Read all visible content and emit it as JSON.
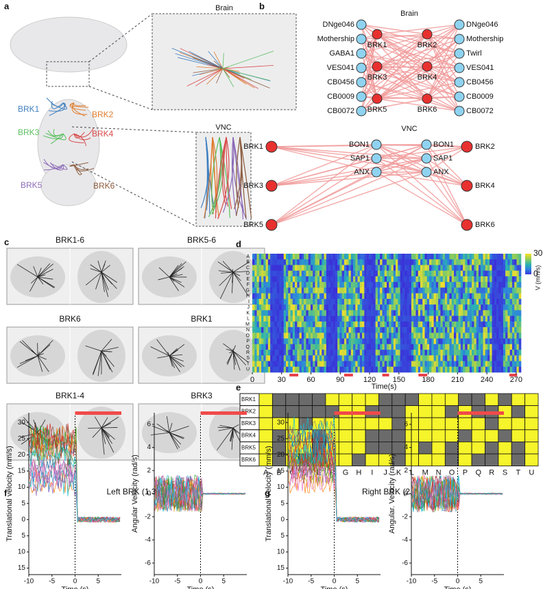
{
  "panel_labels": [
    "a",
    "b",
    "c",
    "d",
    "e",
    "f",
    "g"
  ],
  "a": {
    "brain_label": "Brain",
    "vnc_label": "VNC",
    "neurons": [
      {
        "name": "BRK1",
        "color": "#3f7fbf"
      },
      {
        "name": "BRK2",
        "color": "#e07b2b"
      },
      {
        "name": "BRK3",
        "color": "#5bbf5f"
      },
      {
        "name": "BRK4",
        "color": "#d94a4a"
      },
      {
        "name": "BRK5",
        "color": "#8c6bb8"
      },
      {
        "name": "BRK6",
        "color": "#8b5a3c"
      }
    ]
  },
  "b": {
    "brain_title": "Brain",
    "brain_left": [
      "DNge046",
      "Mothership",
      "GABA1",
      "VES041",
      "CB0456",
      "CB0009",
      "CB0072"
    ],
    "brain_right": [
      "DNge046",
      "Mothership",
      "Twirl",
      "VES041",
      "CB0456",
      "CB0009",
      "CB0072"
    ],
    "brain_brk": [
      "BRK1",
      "BRK2",
      "BRK3",
      "BRK4",
      "BRK5",
      "BRK6"
    ],
    "vnc_title": "VNC",
    "vnc_brk": [
      "BRK1",
      "BRK2",
      "BRK3",
      "BRK4",
      "BRK5",
      "BRK6"
    ],
    "vnc_left": [
      "BON1",
      "SAP1",
      "ANX"
    ],
    "vnc_right": [
      "BON1",
      "SAP1",
      "ANX"
    ]
  },
  "c": {
    "images": [
      "BRK1-6",
      "BRK5-6",
      "BRK6",
      "BRK1",
      "BRK1-4",
      "BRK3"
    ]
  },
  "d": {
    "rows": [
      "A",
      "B",
      "C",
      "D",
      "E",
      "F",
      "G",
      "H",
      "I",
      "J",
      "K",
      "L",
      "M",
      "N",
      "O",
      "P",
      "Q",
      "R",
      "S",
      "T",
      "U"
    ],
    "xlim": [
      0,
      275
    ],
    "xticks": [
      0,
      30,
      60,
      90,
      120,
      150,
      180,
      210,
      240,
      270
    ],
    "xlabel": "Time(s)",
    "colorbar": {
      "ticks": [
        30,
        0
      ],
      "label": "V (mm/s)"
    },
    "stim": [
      [
        38,
        47
      ],
      [
        94,
        103
      ],
      [
        133,
        140
      ],
      [
        170,
        179
      ],
      [
        263,
        271
      ]
    ]
  },
  "e": {
    "rows": [
      "BRK1",
      "BRK2",
      "BRK3",
      "BRK4",
      "BRK5",
      "BRK6"
    ],
    "cols": [
      "A",
      "B",
      "C",
      "D",
      "E",
      "F",
      "G",
      "H",
      "I",
      "J",
      "K",
      "L",
      "M",
      "N",
      "O",
      "P",
      "Q",
      "R",
      "S",
      "T",
      "U"
    ],
    "matrix": [
      [
        1,
        0,
        0,
        0,
        0,
        1,
        1,
        1,
        1,
        0,
        0,
        0,
        1,
        1,
        1,
        0,
        0,
        1,
        0,
        1,
        1
      ],
      [
        1,
        0,
        0,
        0,
        0,
        0,
        1,
        1,
        0,
        0,
        0,
        1,
        1,
        1,
        0,
        1,
        0,
        0,
        1,
        0,
        1
      ],
      [
        1,
        1,
        1,
        0,
        1,
        1,
        1,
        1,
        1,
        1,
        0,
        1,
        1,
        1,
        1,
        1,
        1,
        0,
        1,
        1,
        1
      ],
      [
        1,
        0,
        1,
        1,
        0,
        1,
        1,
        1,
        0,
        0,
        0,
        1,
        1,
        1,
        1,
        0,
        1,
        1,
        0,
        1,
        1
      ],
      [
        1,
        0,
        1,
        1,
        0,
        1,
        1,
        1,
        0,
        0,
        0,
        1,
        0,
        1,
        0,
        1,
        1,
        0,
        1,
        0,
        1
      ],
      [
        1,
        0,
        1,
        0,
        0,
        1,
        1,
        0,
        1,
        1,
        0,
        1,
        1,
        1,
        0,
        1,
        0,
        0,
        1,
        0,
        1
      ]
    ]
  },
  "f": {
    "title": "Left  BRK (1,3,5)",
    "xlabel": "Time (s)",
    "xlim": [
      -10,
      10
    ],
    "xticks": [
      -10,
      -5,
      0,
      5
    ],
    "stim": [
      0,
      10
    ],
    "trans": {
      "ylabel": "Translational velocity (mm/s)",
      "ylim": [
        -17,
        33
      ],
      "yticks": [
        30,
        25,
        20,
        15,
        10,
        5,
        0,
        {
          "value": -5,
          "label": "5"
        },
        {
          "value": -10,
          "label": "10"
        },
        {
          "value": -15,
          "label": "15"
        }
      ]
    },
    "ang": {
      "ylabel": "Angular Velocity (rad/s)",
      "ylim": [
        -7,
        7
      ],
      "yticks": [
        6,
        4,
        2,
        0,
        -2,
        -4,
        -6
      ]
    }
  },
  "g": {
    "title": "Right BRK (2,4,6)",
    "xlabel": "Time (s)",
    "xlim": [
      -10,
      10
    ],
    "xticks": [
      -10,
      -5,
      0,
      5
    ],
    "stim": [
      0,
      10
    ],
    "trans": {
      "ylabel": "Translational velocity (mm/s)",
      "ylim": [
        -17,
        33
      ],
      "yticks": [
        30,
        25,
        20,
        15,
        10,
        5,
        0,
        {
          "value": -5,
          "label": "5"
        },
        {
          "value": -10,
          "label": "10"
        },
        {
          "value": -15,
          "label": "15"
        }
      ]
    },
    "ang": {
      "ylabel": "Angular. Velocity (rad/s)",
      "ylim": [
        -7,
        7
      ],
      "yticks": [
        6,
        4,
        2,
        0,
        -2,
        -4,
        -6
      ]
    }
  }
}
